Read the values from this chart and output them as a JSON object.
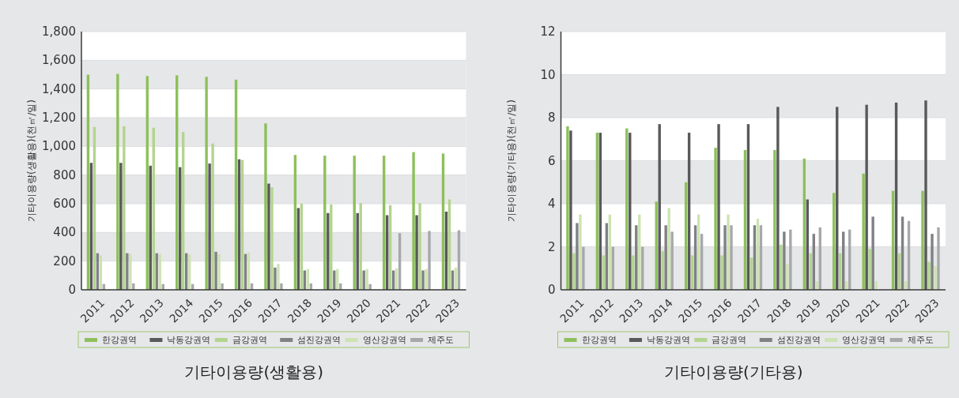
{
  "chart_data": [
    {
      "type": "bar",
      "title": "기타이용량(생활용)",
      "ylabel": "기타이용량(생활용)(천㎥/일)",
      "categories": [
        "2011",
        "2012",
        "2013",
        "2014",
        "2015",
        "2016",
        "2017",
        "2018",
        "2019",
        "2020",
        "2021",
        "2022",
        "2023"
      ],
      "series": [
        {
          "name": "한강권역",
          "color": "#8dc05a",
          "values": [
            1500,
            1505,
            1490,
            1495,
            1485,
            1465,
            1160,
            940,
            935,
            935,
            935,
            960,
            950
          ]
        },
        {
          "name": "낙동강권역",
          "color": "#58595b",
          "values": [
            885,
            885,
            865,
            855,
            880,
            910,
            740,
            570,
            535,
            535,
            520,
            520,
            545
          ]
        },
        {
          "name": "금강권역",
          "color": "#b3d48e",
          "values": [
            1135,
            1140,
            1130,
            1100,
            1020,
            905,
            715,
            600,
            595,
            605,
            590,
            605,
            630
          ]
        },
        {
          "name": "섬진강권역",
          "color": "#808184",
          "values": [
            255,
            255,
            255,
            255,
            265,
            250,
            155,
            135,
            135,
            135,
            135,
            135,
            135
          ]
        },
        {
          "name": "영산강권역",
          "color": "#cde3b3",
          "values": [
            240,
            250,
            250,
            245,
            250,
            260,
            180,
            145,
            145,
            145,
            150,
            145,
            155
          ]
        },
        {
          "name": "제주도",
          "color": "#a7a8aa",
          "values": [
            40,
            45,
            40,
            40,
            45,
            45,
            45,
            45,
            45,
            40,
            395,
            410,
            415
          ]
        }
      ],
      "ylim": [
        0,
        1800
      ],
      "yticks": [
        0,
        200,
        400,
        600,
        800,
        {
          "value": 1000,
          "label": "1,000"
        },
        {
          "value": 1200,
          "label": "1,200"
        },
        {
          "value": 1400,
          "label": "1,400"
        },
        {
          "value": 1600,
          "label": "1,600"
        },
        {
          "value": 1800,
          "label": "1,800"
        }
      ],
      "grid": "y",
      "legend": "bottom"
    },
    {
      "type": "bar",
      "title": "기타이용량(기타용)",
      "ylabel": "기타이용량(기타용)(천㎥/일)",
      "categories": [
        "2011",
        "2012",
        "2013",
        "2014",
        "2015",
        "2016",
        "2017",
        "2018",
        "2019",
        "2020",
        "2021",
        "2022",
        "2023"
      ],
      "series": [
        {
          "name": "한강권역",
          "color": "#8dc05a",
          "values": [
            7.6,
            7.3,
            7.5,
            4.1,
            5.0,
            6.6,
            6.5,
            6.5,
            6.1,
            4.5,
            5.4,
            4.6,
            4.6
          ]
        },
        {
          "name": "낙동강권역",
          "color": "#58595b",
          "values": [
            7.4,
            7.3,
            7.3,
            7.7,
            7.3,
            7.7,
            7.7,
            8.5,
            4.2,
            8.5,
            8.6,
            8.7,
            8.8
          ]
        },
        {
          "name": "금강권역",
          "color": "#b3d48e",
          "values": [
            1.7,
            1.6,
            1.6,
            1.8,
            1.6,
            1.6,
            1.5,
            2.1,
            1.7,
            1.7,
            1.9,
            1.7,
            1.3
          ]
        },
        {
          "name": "섬진강권역",
          "color": "#808184",
          "values": [
            3.1,
            3.1,
            3.0,
            3.0,
            3.0,
            3.0,
            3.0,
            2.7,
            2.6,
            2.7,
            3.4,
            3.4,
            2.6
          ]
        },
        {
          "name": "영산강권역",
          "color": "#cde3b3",
          "values": [
            3.5,
            3.5,
            3.5,
            3.8,
            3.5,
            3.5,
            3.3,
            1.2,
            0.4,
            0.4,
            0.4,
            0.4,
            1.1
          ]
        },
        {
          "name": "제주도",
          "color": "#a7a8aa",
          "values": [
            2.0,
            2.0,
            2.0,
            2.7,
            2.6,
            3.0,
            3.0,
            2.8,
            2.9,
            2.8,
            null,
            3.2,
            2.9
          ]
        }
      ],
      "ylim": [
        0,
        12
      ],
      "yticks": [
        0,
        2,
        4,
        6,
        8,
        10,
        12
      ],
      "grid": "y",
      "legend": "bottom"
    }
  ]
}
